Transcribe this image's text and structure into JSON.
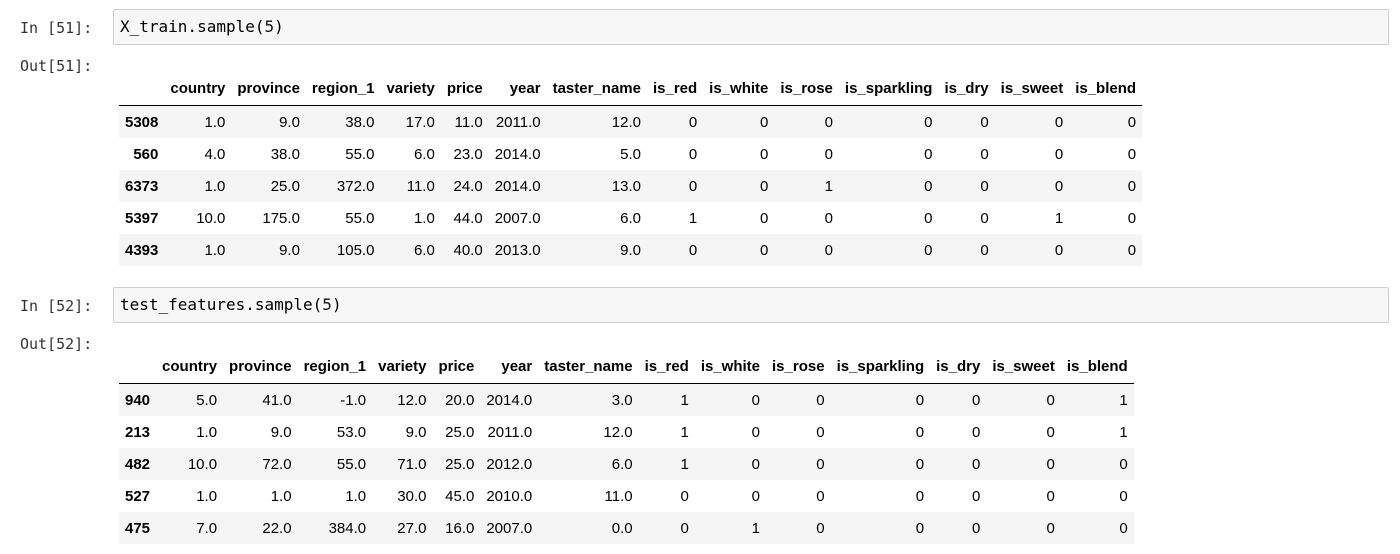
{
  "cells": [
    {
      "in_prompt": "In [51]:",
      "code": {
        "fn": "X_train.sample",
        "open": "(",
        "arg": "5",
        "close": ")"
      },
      "out_prompt": "Out[51]:",
      "table": {
        "columns": [
          "",
          "country",
          "province",
          "region_1",
          "variety",
          "price",
          "year",
          "taster_name",
          "is_red",
          "is_white",
          "is_rose",
          "is_sparkling",
          "is_dry",
          "is_sweet",
          "is_blend"
        ],
        "rows": [
          [
            "5308",
            "1.0",
            "9.0",
            "38.0",
            "17.0",
            "11.0",
            "2011.0",
            "12.0",
            "0",
            "0",
            "0",
            "0",
            "0",
            "0",
            "0"
          ],
          [
            "560",
            "4.0",
            "38.0",
            "55.0",
            "6.0",
            "23.0",
            "2014.0",
            "5.0",
            "0",
            "0",
            "0",
            "0",
            "0",
            "0",
            "0"
          ],
          [
            "6373",
            "1.0",
            "25.0",
            "372.0",
            "11.0",
            "24.0",
            "2014.0",
            "13.0",
            "0",
            "0",
            "1",
            "0",
            "0",
            "0",
            "0"
          ],
          [
            "5397",
            "10.0",
            "175.0",
            "55.0",
            "1.0",
            "44.0",
            "2007.0",
            "6.0",
            "1",
            "0",
            "0",
            "0",
            "0",
            "1",
            "0"
          ],
          [
            "4393",
            "1.0",
            "9.0",
            "105.0",
            "6.0",
            "40.0",
            "2013.0",
            "9.0",
            "0",
            "0",
            "0",
            "0",
            "0",
            "0",
            "0"
          ]
        ]
      }
    },
    {
      "in_prompt": "In [52]:",
      "code": {
        "fn": "test_features.sample",
        "open": "(",
        "arg": "5",
        "close": ")"
      },
      "out_prompt": "Out[52]:",
      "table": {
        "columns": [
          "",
          "country",
          "province",
          "region_1",
          "variety",
          "price",
          "year",
          "taster_name",
          "is_red",
          "is_white",
          "is_rose",
          "is_sparkling",
          "is_dry",
          "is_sweet",
          "is_blend"
        ],
        "rows": [
          [
            "940",
            "5.0",
            "41.0",
            "-1.0",
            "12.0",
            "20.0",
            "2014.0",
            "3.0",
            "1",
            "0",
            "0",
            "0",
            "0",
            "0",
            "1"
          ],
          [
            "213",
            "1.0",
            "9.0",
            "53.0",
            "9.0",
            "25.0",
            "2011.0",
            "12.0",
            "1",
            "0",
            "0",
            "0",
            "0",
            "0",
            "1"
          ],
          [
            "482",
            "10.0",
            "72.0",
            "55.0",
            "71.0",
            "25.0",
            "2012.0",
            "6.0",
            "1",
            "0",
            "0",
            "0",
            "0",
            "0",
            "0"
          ],
          [
            "527",
            "1.0",
            "1.0",
            "1.0",
            "30.0",
            "45.0",
            "2010.0",
            "11.0",
            "0",
            "0",
            "0",
            "0",
            "0",
            "0",
            "0"
          ],
          [
            "475",
            "7.0",
            "22.0",
            "384.0",
            "27.0",
            "16.0",
            "2007.0",
            "0.0",
            "0",
            "1",
            "0",
            "0",
            "0",
            "0",
            "0"
          ]
        ]
      }
    }
  ]
}
